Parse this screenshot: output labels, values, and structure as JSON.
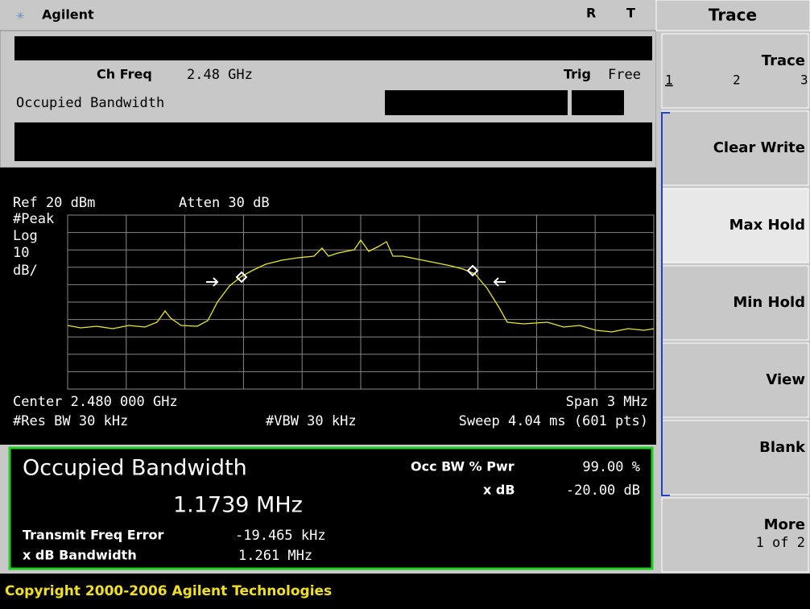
{
  "header": {
    "brand": "Agilent",
    "status_r": "R",
    "status_t": "T"
  },
  "menu": {
    "title": "Trace",
    "softkeys": [
      {
        "label": "Trace",
        "options": [
          "1",
          "2",
          "3"
        ]
      },
      {
        "label": "Clear Write"
      },
      {
        "label": "Max Hold"
      },
      {
        "label": "Min Hold"
      },
      {
        "label": "View"
      },
      {
        "label": "Blank"
      },
      {
        "label": "More",
        "sub": "1 of 2"
      }
    ]
  },
  "info": {
    "ch_freq_label": "Ch Freq",
    "ch_freq_value": "2.48 GHz",
    "trig_label": "Trig",
    "trig_value": "Free",
    "mode": "Occupied Bandwidth"
  },
  "display": {
    "ref": "Ref 20 dBm",
    "atten": "Atten 30 dB",
    "detector": "#Peak",
    "scale_type": "Log",
    "scale_value": "10",
    "scale_unit": "dB/",
    "center": "Center 2.480 000 GHz",
    "span": "Span 3 MHz",
    "res_bw": "#Res BW 30 kHz",
    "vbw": "#VBW 30 kHz",
    "sweep": "Sweep 4.04 ms (601 pts)"
  },
  "results": {
    "title": "Occupied Bandwidth",
    "value": "1.1739 MHz",
    "occ_label": "Occ BW % Pwr",
    "occ_value": "99.00 %",
    "xdb_label": "x dB",
    "xdb_value": "-20.00 dB",
    "tfe_label": "Transmit Freq Error",
    "tfe_value": "-19.465 kHz",
    "xdbbw_label": "x dB Bandwidth",
    "xdbbw_value": "1.261 MHz"
  },
  "footer": {
    "copyright": "Copyright 2000-2006 Agilent Technologies"
  }
}
